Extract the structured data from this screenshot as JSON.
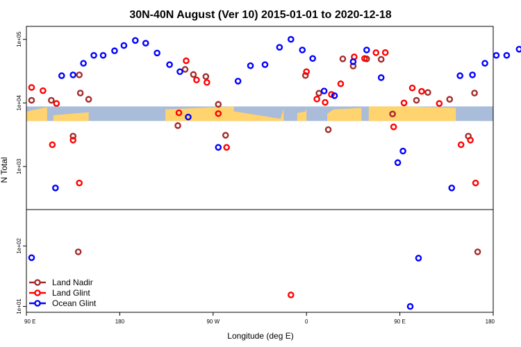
{
  "chart_data": {
    "type": "scatter",
    "title": "30N-40N August (Ver 10)   2015-01-01 to 2020-12-18",
    "xlabel": "Longitude (deg E)",
    "ylabel": "N Total",
    "x_ticks": [
      {
        "value": 90,
        "label": "90 E"
      },
      {
        "value": 180,
        "label": "180"
      },
      {
        "value": 270,
        "label": "90 W"
      },
      {
        "value": 360,
        "label": "0"
      },
      {
        "value": 450,
        "label": "90 E"
      },
      {
        "value": 540,
        "label": "180"
      }
    ],
    "xlim": [
      90,
      540
    ],
    "upper_panel": {
      "y_scale": "log",
      "ylim": [
        210,
        160000
      ],
      "y_ticks": [
        {
          "value": 1000,
          "label": "1e+03"
        },
        {
          "value": 10000,
          "label": "1e+04"
        },
        {
          "value": 100000,
          "label": "1e+05"
        }
      ],
      "map_band": {
        "lat_range": "30N-40N",
        "y_range": [
          5200,
          8800
        ]
      }
    },
    "lower_panel": {
      "y_scale": "log",
      "ylim": [
        8,
        400
      ],
      "y_ticks": [
        {
          "value": 10,
          "label": "1e+01"
        },
        {
          "value": 100,
          "label": "1e+02"
        }
      ]
    },
    "legend": {
      "position": "bottom-left"
    },
    "series": [
      {
        "name": "Land Nadir",
        "color": "#a52a2a",
        "upper_points": [
          [
            95,
            11000
          ],
          [
            114,
            11000
          ],
          [
            135,
            3000
          ],
          [
            142,
            14300
          ],
          [
            141,
            27600
          ],
          [
            150,
            11400
          ],
          [
            236,
            4400
          ],
          [
            243,
            33700
          ],
          [
            251,
            28000
          ],
          [
            263,
            26000
          ],
          [
            275,
            9500
          ],
          [
            282,
            3100
          ],
          [
            359,
            27000
          ],
          [
            372,
            14200
          ],
          [
            381,
            3800
          ],
          [
            395,
            49300
          ],
          [
            405,
            38000
          ],
          [
            418,
            49300
          ],
          [
            432,
            48500
          ],
          [
            443,
            6700
          ],
          [
            466,
            11000
          ],
          [
            477,
            14600
          ],
          [
            498,
            11400
          ],
          [
            516,
            3000
          ],
          [
            522,
            14300
          ]
        ],
        "lower_points": [
          [
            140,
            80
          ],
          [
            525,
            80
          ]
        ]
      },
      {
        "name": "Land Glint",
        "color": "#ff0000",
        "upper_points": [
          [
            95,
            17500
          ],
          [
            106,
            15600
          ],
          [
            115,
            2200
          ],
          [
            119,
            9800
          ],
          [
            135,
            2600
          ],
          [
            141,
            550
          ],
          [
            237,
            7000
          ],
          [
            244,
            46000
          ],
          [
            254,
            23000
          ],
          [
            264,
            21000
          ],
          [
            275,
            6800
          ],
          [
            283,
            2000
          ],
          [
            360,
            31000
          ],
          [
            370,
            11500
          ],
          [
            378,
            10200
          ],
          [
            384,
            13600
          ],
          [
            393,
            20000
          ],
          [
            406,
            53000
          ],
          [
            416,
            50000
          ],
          [
            427,
            61700
          ],
          [
            436,
            62000
          ],
          [
            444,
            4200
          ],
          [
            454,
            10000
          ],
          [
            462,
            17200
          ],
          [
            471,
            15200
          ],
          [
            488,
            9800
          ],
          [
            509,
            2200
          ],
          [
            518,
            2600
          ],
          [
            523,
            550
          ]
        ],
        "lower_points": [
          [
            345,
            15.5
          ]
        ]
      },
      {
        "name": "Ocean Glint",
        "color": "#0000ff",
        "upper_points": [
          [
            118,
            460
          ],
          [
            124,
            26800
          ],
          [
            135,
            27600
          ],
          [
            145,
            42000
          ],
          [
            155,
            56000
          ],
          [
            164,
            56000
          ],
          [
            175,
            66000
          ],
          [
            184,
            80000
          ],
          [
            195,
            96000
          ],
          [
            205,
            87000
          ],
          [
            216,
            61000
          ],
          [
            228,
            40000
          ],
          [
            238,
            31000
          ],
          [
            246,
            6000
          ],
          [
            275,
            2000
          ],
          [
            294,
            22000
          ],
          [
            306,
            38500
          ],
          [
            320,
            40000
          ],
          [
            334,
            75000
          ],
          [
            345,
            100000
          ],
          [
            356,
            68000
          ],
          [
            366,
            50000
          ],
          [
            377,
            15400
          ],
          [
            387,
            13000
          ],
          [
            405,
            44500
          ],
          [
            418,
            68000
          ],
          [
            432,
            25000
          ],
          [
            448,
            1150
          ],
          [
            453,
            1750
          ],
          [
            500,
            460
          ],
          [
            508,
            26800
          ],
          [
            520,
            27600
          ],
          [
            532,
            42000
          ],
          [
            543,
            56000
          ],
          [
            553,
            56000
          ],
          [
            565,
            70000
          ]
        ],
        "lower_points": [
          [
            95,
            64
          ],
          [
            460,
            10
          ],
          [
            468,
            63
          ]
        ]
      }
    ]
  }
}
